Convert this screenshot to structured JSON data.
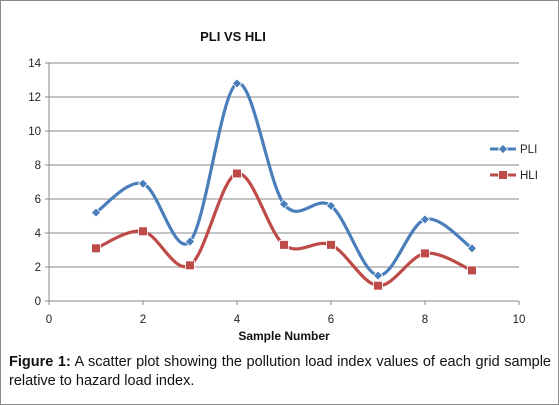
{
  "chart_data": {
    "type": "line",
    "title": "PLI VS HLI",
    "xlabel": "Sample Number",
    "ylabel": "",
    "xlim": [
      0,
      10
    ],
    "ylim": [
      0,
      14
    ],
    "xticks": [
      0,
      2,
      4,
      6,
      8,
      10
    ],
    "yticks": [
      0,
      2,
      4,
      6,
      8,
      10,
      12,
      14
    ],
    "grid": "horizontal",
    "legend_position": "right",
    "series": [
      {
        "name": "PLI",
        "color": "#4a7ebb",
        "marker": "diamond",
        "x": [
          1,
          2,
          3,
          4,
          5,
          6,
          7,
          8,
          9
        ],
        "y": [
          5.2,
          6.9,
          3.5,
          12.8,
          5.7,
          5.6,
          1.5,
          4.8,
          3.1
        ]
      },
      {
        "name": "HLI",
        "color": "#be4b48",
        "marker": "square",
        "x": [
          1,
          2,
          3,
          4,
          5,
          6,
          7,
          8,
          9
        ],
        "y": [
          3.1,
          4.1,
          2.1,
          7.5,
          3.3,
          3.3,
          0.9,
          2.8,
          1.8
        ]
      }
    ]
  },
  "caption": {
    "label": "Figure 1:",
    "text": " A scatter plot showing the pollution load index values of each grid sample relative to hazard load index."
  }
}
